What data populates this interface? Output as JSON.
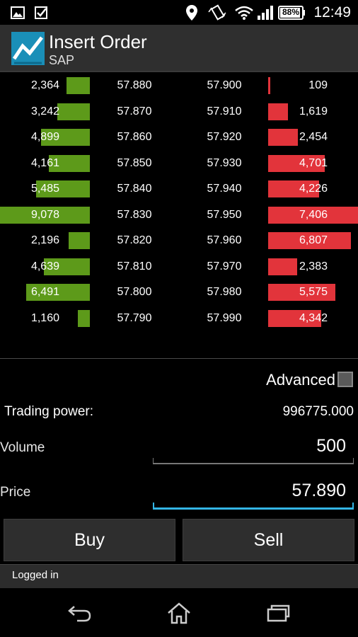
{
  "statusbar": {
    "battery_percent": "88%",
    "time": "12:49",
    "icons": [
      "gallery-icon",
      "checkbox-notification-icon",
      "location-icon",
      "vibrate-icon",
      "wifi-icon",
      "signal-icon",
      "battery-icon"
    ]
  },
  "app": {
    "logo_icon": "chart-logo-icon",
    "title": "Insert Order",
    "subtitle": "SAP"
  },
  "order_book": {
    "bid_color": "#5d9a1a",
    "ask_color": "#e2343b",
    "rows": [
      {
        "bid_qty": "2,364",
        "bid_fill": 0.26,
        "bid_price": "57.880",
        "ask_price": "57.900",
        "ask_qty": "109",
        "ask_fill": 0.02
      },
      {
        "bid_qty": "3,242",
        "bid_fill": 0.36,
        "bid_price": "57.870",
        "ask_price": "57.910",
        "ask_qty": "1,619",
        "ask_fill": 0.22
      },
      {
        "bid_qty": "4,899",
        "bid_fill": 0.54,
        "bid_price": "57.860",
        "ask_price": "57.920",
        "ask_qty": "2,454",
        "ask_fill": 0.33
      },
      {
        "bid_qty": "4,161",
        "bid_fill": 0.46,
        "bid_price": "57.850",
        "ask_price": "57.930",
        "ask_qty": "4,701",
        "ask_fill": 0.63
      },
      {
        "bid_qty": "5,485",
        "bid_fill": 0.6,
        "bid_price": "57.840",
        "ask_price": "57.940",
        "ask_qty": "4,226",
        "ask_fill": 0.57
      },
      {
        "bid_qty": "9,078",
        "bid_fill": 1.0,
        "bid_price": "57.830",
        "ask_price": "57.950",
        "ask_qty": "7,406",
        "ask_fill": 1.0
      },
      {
        "bid_qty": "2,196",
        "bid_fill": 0.24,
        "bid_price": "57.820",
        "ask_price": "57.960",
        "ask_qty": "6,807",
        "ask_fill": 0.92
      },
      {
        "bid_qty": "4,639",
        "bid_fill": 0.51,
        "bid_price": "57.810",
        "ask_price": "57.970",
        "ask_qty": "2,383",
        "ask_fill": 0.32
      },
      {
        "bid_qty": "6,491",
        "bid_fill": 0.71,
        "bid_price": "57.800",
        "ask_price": "57.980",
        "ask_qty": "5,575",
        "ask_fill": 0.75
      },
      {
        "bid_qty": "1,160",
        "bid_fill": 0.13,
        "bid_price": "57.790",
        "ask_price": "57.990",
        "ask_qty": "4,342",
        "ask_fill": 0.59
      }
    ]
  },
  "form": {
    "advanced_label": "Advanced",
    "advanced_checked": false,
    "trading_power_label": "Trading power:",
    "trading_power_value": "996775.000",
    "volume_label": "Volume",
    "volume_value": "500",
    "price_label": "Price",
    "price_value": "57.890",
    "buy_label": "Buy",
    "sell_label": "Sell"
  },
  "status_line": "Logged in",
  "navbar": {
    "icons": [
      "back-icon",
      "home-icon",
      "recent-apps-icon"
    ]
  }
}
